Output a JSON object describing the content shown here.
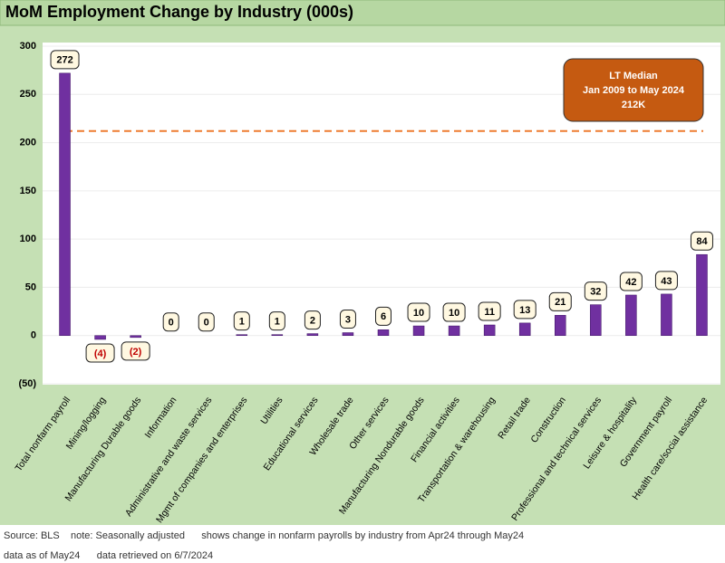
{
  "chart_data": {
    "type": "bar",
    "title": "MoM Employment Change by Industry (000s)",
    "categories": [
      "Total nonfarm payroll",
      "Mining/logging",
      "Manufacturing Durable goods",
      "Information",
      "Administrative and waste services",
      "Mgmt of companies and enterprises",
      "Utilities",
      "Educational services",
      "Wholesale trade",
      "Other services",
      "Manufacturing Nondurable goods",
      "Financial activities",
      "Transportation & warehousing",
      "Retail trade",
      "Construction",
      "Professional and technical services",
      "Leisure & hospitality",
      "Government payroll",
      "Health care/social assistance"
    ],
    "values": [
      272,
      -4,
      -2,
      0,
      0,
      1,
      1,
      2,
      3,
      6,
      10,
      10,
      11,
      13,
      21,
      32,
      42,
      43,
      84
    ],
    "value_labels": [
      "272",
      "(4)",
      "(2)",
      "0",
      "0",
      "1",
      "1",
      "2",
      "3",
      "6",
      "10",
      "10",
      "11",
      "13",
      "21",
      "32",
      "42",
      "43",
      "84"
    ],
    "color": "#7030a0",
    "ylim": [
      -50,
      300
    ],
    "yticks": [
      {
        "value": -50,
        "label": "(50)"
      },
      0,
      50,
      100,
      150,
      200,
      250,
      300
    ],
    "grid": true,
    "reference_line": {
      "value": 212,
      "color": "#ed7d31"
    },
    "annotation": [
      "LT Median",
      "Jan 2009 to May 2024",
      "212K"
    ],
    "footnotes": [
      "Source: BLS    note: Seasonally adjusted      shows change in nonfarm payrolls by industry from Apr24 through May24",
      "data as of May24      data retrieved on 6/7/2024"
    ]
  }
}
